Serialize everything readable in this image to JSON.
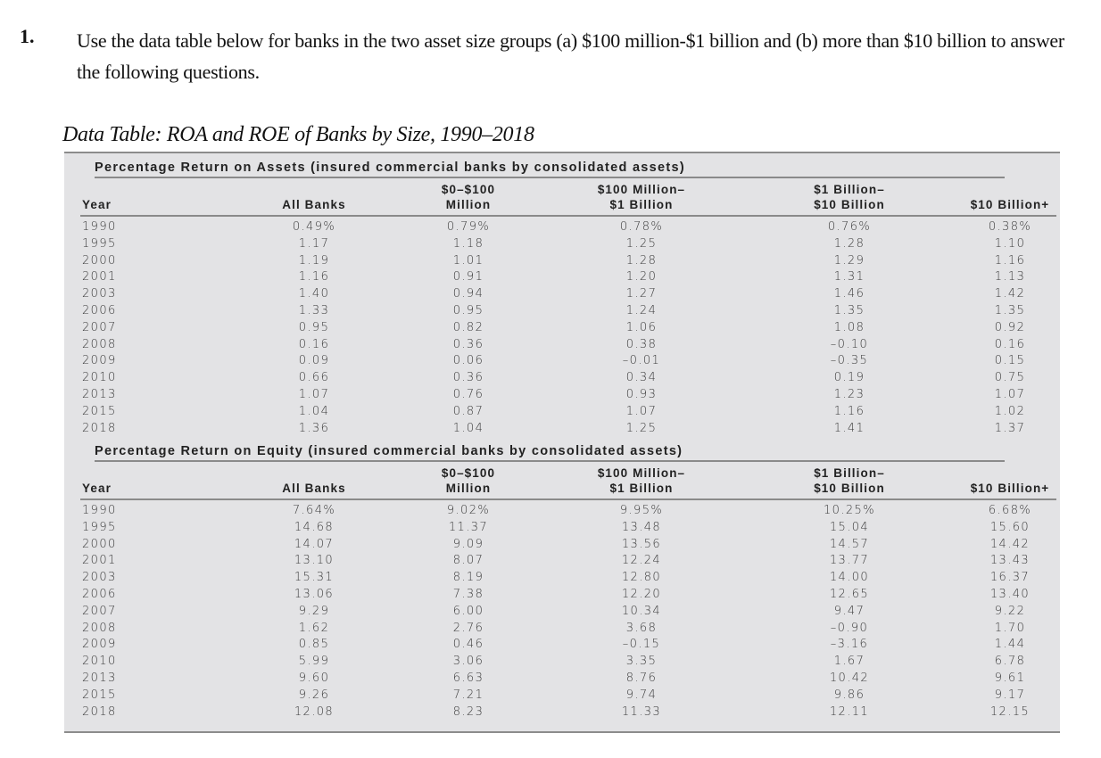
{
  "question": {
    "number": "1.",
    "text": "Use the data table below for banks in the two asset size groups (a) $100 million-$1 billion and (b) more than $10 billion to answer the following questions."
  },
  "caption": "Data Table: ROA and ROE of Banks by Size, 1990–2018",
  "headers": [
    "Year",
    "All Banks",
    "$0–$100 Million",
    "$100 Million– $1 Billion",
    "$1 Billion– $10 Billion",
    "$10 Billion+"
  ],
  "header_lines": [
    [
      "Year"
    ],
    [
      "All Banks"
    ],
    [
      "$0–$100",
      "Million"
    ],
    [
      "$100 Million–",
      "$1 Billion"
    ],
    [
      "$1 Billion–",
      "$10 Billion"
    ],
    [
      "$10 Billion+"
    ]
  ],
  "sections": [
    {
      "title": "Percentage Return on Assets (insured commercial banks by consolidated assets)",
      "rows": [
        [
          "1990",
          "0.49%",
          "0.79%",
          "0.78%",
          "0.76%",
          "0.38%"
        ],
        [
          "1995",
          "1.17",
          "1.18",
          "1.25",
          "1.28",
          "1.10"
        ],
        [
          "2000",
          "1.19",
          "1.01",
          "1.28",
          "1.29",
          "1.16"
        ],
        [
          "2001",
          "1.16",
          "0.91",
          "1.20",
          "1.31",
          "1.13"
        ],
        [
          "2003",
          "1.40",
          "0.94",
          "1.27",
          "1.46",
          "1.42"
        ],
        [
          "2006",
          "1.33",
          "0.95",
          "1.24",
          "1.35",
          "1.35"
        ],
        [
          "2007",
          "0.95",
          "0.82",
          "1.06",
          "1.08",
          "0.92"
        ],
        [
          "2008",
          "0.16",
          "0.36",
          "0.38",
          "–0.10",
          "0.16"
        ],
        [
          "2009",
          "0.09",
          "0.06",
          "–0.01",
          "–0.35",
          "0.15"
        ],
        [
          "2010",
          "0.66",
          "0.36",
          "0.34",
          "0.19",
          "0.75"
        ],
        [
          "2013",
          "1.07",
          "0.76",
          "0.93",
          "1.23",
          "1.07"
        ],
        [
          "2015",
          "1.04",
          "0.87",
          "1.07",
          "1.16",
          "1.02"
        ],
        [
          "2018",
          "1.36",
          "1.04",
          "1.25",
          "1.41",
          "1.37"
        ]
      ]
    },
    {
      "title": "Percentage Return on Equity (insured commercial banks by consolidated assets)",
      "rows": [
        [
          "1990",
          "7.64%",
          "9.02%",
          "9.95%",
          "10.25%",
          "6.68%"
        ],
        [
          "1995",
          "14.68",
          "11.37",
          "13.48",
          "15.04",
          "15.60"
        ],
        [
          "2000",
          "14.07",
          "9.09",
          "13.56",
          "14.57",
          "14.42"
        ],
        [
          "2001",
          "13.10",
          "8.07",
          "12.24",
          "13.77",
          "13.43"
        ],
        [
          "2003",
          "15.31",
          "8.19",
          "12.80",
          "14.00",
          "16.37"
        ],
        [
          "2006",
          "13.06",
          "7.38",
          "12.20",
          "12.65",
          "13.40"
        ],
        [
          "2007",
          "9.29",
          "6.00",
          "10.34",
          "9.47",
          "9.22"
        ],
        [
          "2008",
          "1.62",
          "2.76",
          "3.68",
          "–0.90",
          "1.70"
        ],
        [
          "2009",
          "0.85",
          "0.46",
          "–0.15",
          "–3.16",
          "1.44"
        ],
        [
          "2010",
          "5.99",
          "3.06",
          "3.35",
          "1.67",
          "6.78"
        ],
        [
          "2013",
          "9.60",
          "6.63",
          "8.76",
          "10.42",
          "9.61"
        ],
        [
          "2015",
          "9.26",
          "7.21",
          "9.74",
          "9.86",
          "9.17"
        ],
        [
          "2018",
          "12.08",
          "8.23",
          "11.33",
          "12.11",
          "12.15"
        ]
      ]
    }
  ]
}
